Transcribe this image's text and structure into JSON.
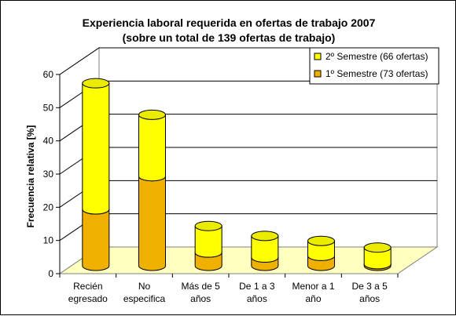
{
  "chart_data": {
    "type": "bar",
    "stacked": true,
    "three_d": true,
    "title": "Experiencia laboral requerida en ofertas de trabajo 2007",
    "subtitle": "(sobre un total de 139 ofertas de trabajo)",
    "ylabel": "Frecuencia relativa [%]",
    "xlabel": "",
    "ylim": [
      0,
      60
    ],
    "yticks": [
      "0",
      "10",
      "20",
      "30",
      "40",
      "50",
      "60"
    ],
    "grid": true,
    "legend_position": "top-right",
    "categories": [
      [
        "Recién",
        "egresado"
      ],
      [
        "No",
        "especifica"
      ],
      [
        "Más de 5",
        "años"
      ],
      [
        "De 1 a 3",
        "años"
      ],
      [
        "Menor a 1",
        "año"
      ],
      [
        "De 3 a 5",
        "años"
      ]
    ],
    "series": [
      {
        "name": "1º Semestre (73 ofertas)",
        "values": [
          17,
          27,
          4,
          2.5,
          3,
          0.5
        ],
        "color": "#F0B000"
      },
      {
        "name": "2º Semestre (66 ofertas)",
        "values": [
          38,
          18.5,
          8,
          6.5,
          4.5,
          5
        ],
        "color": "#FFFF00"
      }
    ],
    "legend_order": [
      1,
      0
    ],
    "floor_color": "#FFFFC0"
  }
}
